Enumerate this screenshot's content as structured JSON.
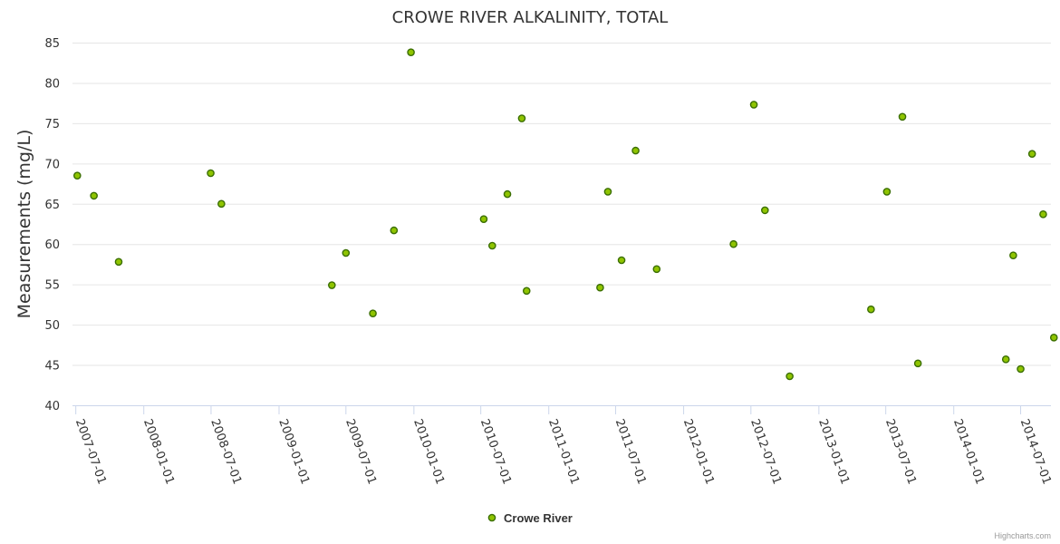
{
  "chart_data": {
    "type": "scatter",
    "title": "CROWE RIVER ALKALINITY, TOTAL",
    "xlabel": "",
    "ylabel": "Measurements (mg/L)",
    "ylim": [
      40,
      85
    ],
    "yticks": [
      "40",
      "45",
      "50",
      "55",
      "60",
      "65",
      "70",
      "75",
      "80",
      "85"
    ],
    "xlim": [
      "2007-06-22",
      "2014-09-21"
    ],
    "xticks": [
      "2007-07-01",
      "2008-01-01",
      "2008-07-01",
      "2009-01-01",
      "2009-07-01",
      "2010-01-01",
      "2010-07-01",
      "2011-01-01",
      "2011-07-01",
      "2012-01-01",
      "2012-07-01",
      "2013-01-01",
      "2013-07-01",
      "2014-01-01",
      "2014-07-01"
    ],
    "grid": true,
    "legend": "bottom-center",
    "colors": {
      "marker": "#8fc400",
      "marker_stroke": "#3a6e00",
      "grid": "#e6e6e6",
      "axis": "#ccd6eb"
    },
    "series": [
      {
        "name": "Crowe River",
        "points": [
          {
            "x": "2007-07-05",
            "y": 68.5
          },
          {
            "x": "2007-08-19",
            "y": 66.0
          },
          {
            "x": "2007-10-25",
            "y": 57.8
          },
          {
            "x": "2008-06-30",
            "y": 68.8
          },
          {
            "x": "2008-07-29",
            "y": 65.0
          },
          {
            "x": "2009-05-24",
            "y": 54.9
          },
          {
            "x": "2009-07-01",
            "y": 58.9
          },
          {
            "x": "2009-09-12",
            "y": 51.4
          },
          {
            "x": "2009-11-08",
            "y": 61.7
          },
          {
            "x": "2009-12-24",
            "y": 83.8
          },
          {
            "x": "2010-07-09",
            "y": 63.1
          },
          {
            "x": "2010-08-01",
            "y": 59.8
          },
          {
            "x": "2010-09-11",
            "y": 66.2
          },
          {
            "x": "2010-10-20",
            "y": 75.6
          },
          {
            "x": "2010-11-02",
            "y": 54.2
          },
          {
            "x": "2011-05-20",
            "y": 54.6
          },
          {
            "x": "2011-06-10",
            "y": 66.5
          },
          {
            "x": "2011-07-17",
            "y": 58.0
          },
          {
            "x": "2011-08-24",
            "y": 71.6
          },
          {
            "x": "2011-10-20",
            "y": 56.9
          },
          {
            "x": "2012-05-15",
            "y": 60.0
          },
          {
            "x": "2012-07-09",
            "y": 77.3
          },
          {
            "x": "2012-08-08",
            "y": 64.2
          },
          {
            "x": "2012-10-14",
            "y": 43.6
          },
          {
            "x": "2013-05-22",
            "y": 51.9
          },
          {
            "x": "2013-07-04",
            "y": 66.5
          },
          {
            "x": "2013-08-15",
            "y": 75.8
          },
          {
            "x": "2013-09-26",
            "y": 45.2
          },
          {
            "x": "2014-05-22",
            "y": 45.7
          },
          {
            "x": "2014-06-11",
            "y": 58.6
          },
          {
            "x": "2014-07-01",
            "y": 44.5
          },
          {
            "x": "2014-08-01",
            "y": 71.2
          },
          {
            "x": "2014-08-31",
            "y": 63.7
          },
          {
            "x": "2014-09-29",
            "y": 48.4
          }
        ]
      }
    ]
  },
  "credits": "Highcharts.com"
}
